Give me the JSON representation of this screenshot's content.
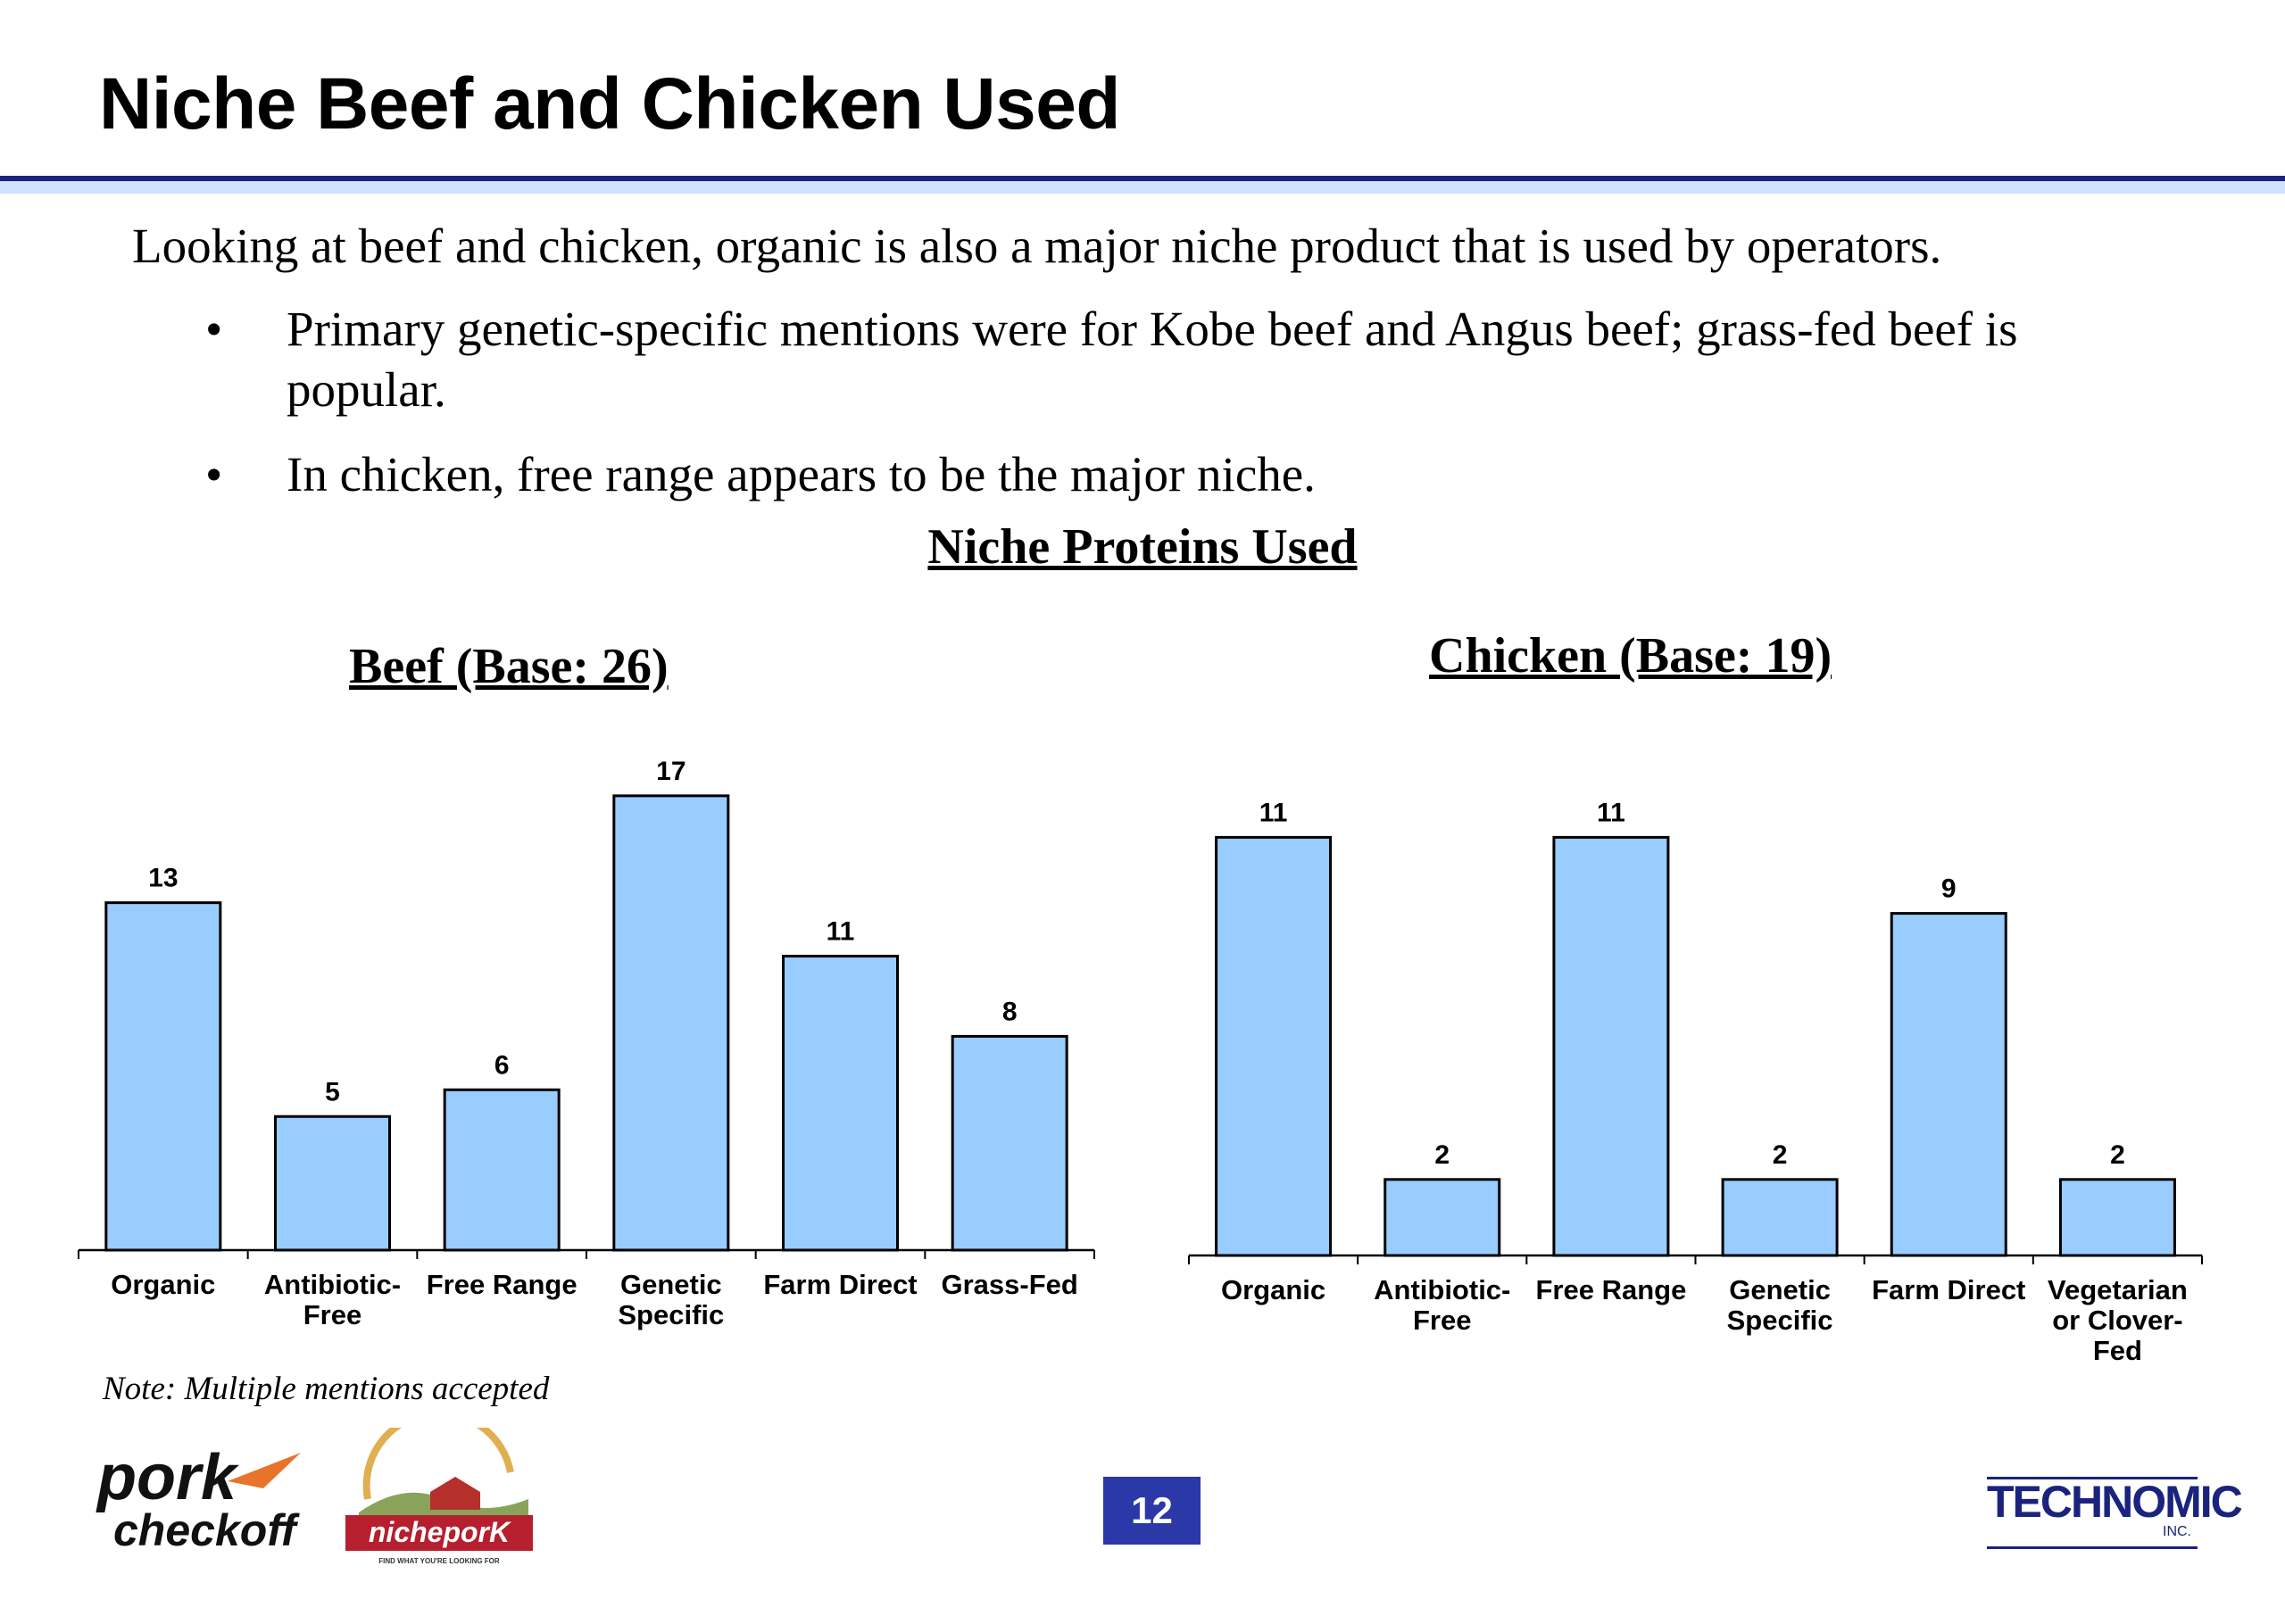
{
  "slide": {
    "title": "Niche Beef and Chicken Used",
    "intro": "Looking at beef and chicken, organic is also a major niche product that is used by operators.",
    "bullets": [
      "Primary genetic-specific mentions were for Kobe beef and Angus beef; grass-fed beef is popular.",
      "In chicken, free range appears to be the major niche."
    ],
    "bullet_glyph": "•",
    "chart_heading": "Niche Proteins Used",
    "note": "Note:  Multiple mentions accepted",
    "page_number": "12"
  },
  "footer": {
    "logo_pork_line1": "pork",
    "logo_pork_line2": "checkoff",
    "logo_niche": "nicheporK",
    "logo_niche_tagline": "FIND WHAT YOU'RE LOOKING FOR",
    "logo_technomic": "TECHNOMIC",
    "logo_technomic_suffix": "INC."
  },
  "colors": {
    "bar_fill": "#99ccff",
    "bar_stroke": "#000000",
    "rule_dark": "#1a237e",
    "rule_light": "#cfe3ff",
    "page_badge": "#2a38a8"
  },
  "chart_data": [
    {
      "type": "bar",
      "title": "Beef (Base: 26)",
      "categories": [
        "Organic",
        "Antibiotic-Free",
        "Free Range",
        "Genetic Specific",
        "Farm Direct",
        "Grass-Fed"
      ],
      "category_lines": [
        [
          "Organic"
        ],
        [
          "Antibiotic-",
          "Free"
        ],
        [
          "Free Range"
        ],
        [
          "Genetic",
          "Specific"
        ],
        [
          "Farm Direct"
        ],
        [
          "Grass-Fed"
        ]
      ],
      "values": [
        13,
        5,
        6,
        17,
        11,
        8
      ],
      "data_labels": true,
      "grid": false,
      "y_axis_visible": false
    },
    {
      "type": "bar",
      "title": "Chicken (Base: 19)",
      "categories": [
        "Organic",
        "Antibiotic-Free",
        "Free Range",
        "Genetic Specific",
        "Farm Direct",
        "Vegetarian or Clover-Fed"
      ],
      "category_lines": [
        [
          "Organic"
        ],
        [
          "Antibiotic-",
          "Free"
        ],
        [
          "Free Range"
        ],
        [
          "Genetic",
          "Specific"
        ],
        [
          "Farm Direct"
        ],
        [
          "Vegetarian",
          "or Clover-",
          "Fed"
        ]
      ],
      "values": [
        11,
        2,
        11,
        2,
        9,
        2
      ],
      "data_labels": true,
      "grid": false,
      "y_axis_visible": false
    }
  ]
}
